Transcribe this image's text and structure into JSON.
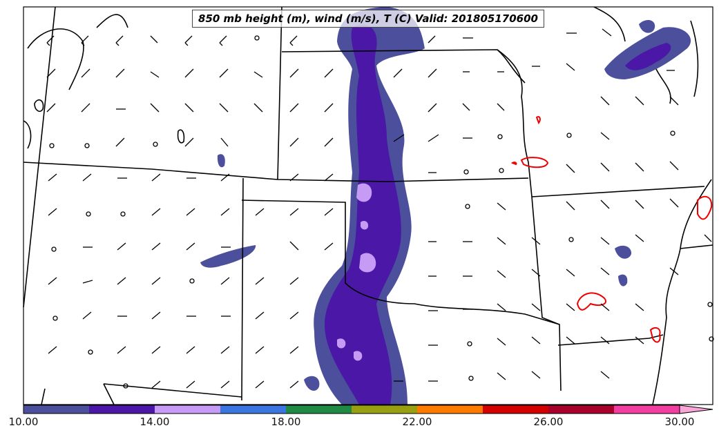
{
  "title": "850 mb height (m), wind (m/s), T (C) Valid: 201805170600",
  "colorbar": {
    "min": 10,
    "max": 30,
    "step": 2,
    "extend": "max",
    "colors": [
      "#4b4f9c",
      "#4b17a6",
      "#c69bf5",
      "#3a75e0",
      "#1f8a44",
      "#98a011",
      "#ff7b00",
      "#d40000",
      "#a8002a",
      "#f23ea1"
    ],
    "extend_color": "#f8a5d8",
    "tick_labels": [
      "10.00",
      "14.00",
      "18.00",
      "22.00",
      "26.00",
      "30.00"
    ]
  },
  "map": {
    "region": "Central and Southern Plains, United States",
    "basemap": "state and coastline boundaries",
    "overlays": [
      "shaded 850 mb wind speed (m/s)",
      "red temperature contours",
      "wind barbs"
    ]
  },
  "colors": {
    "border": "#000000",
    "contour": "#ee0000",
    "background": "#ffffff"
  }
}
